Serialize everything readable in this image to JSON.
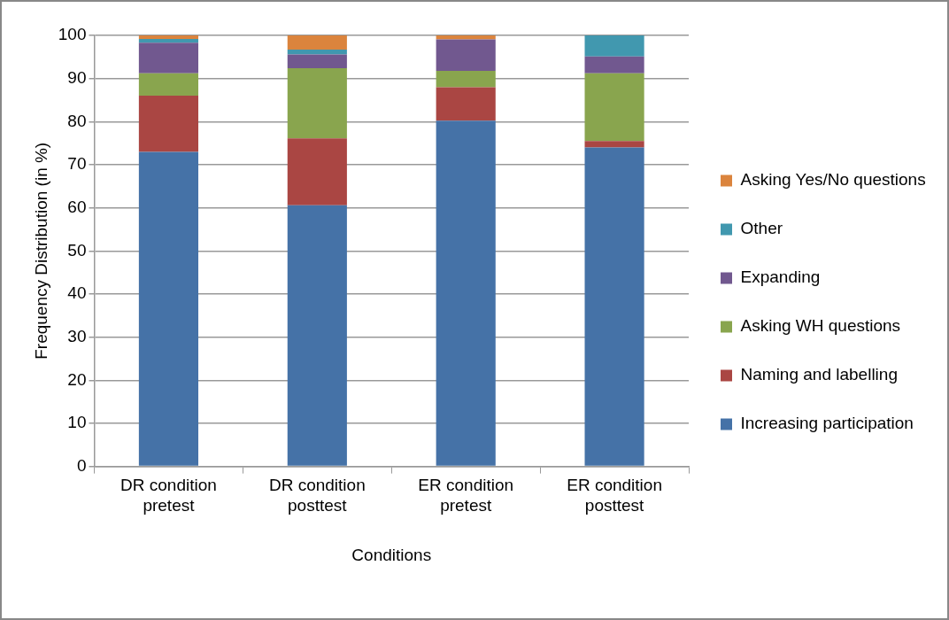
{
  "chart_data": {
    "type": "bar",
    "stacked": true,
    "xlabel": "Conditions",
    "ylabel": "Frequency Distribution (in %)",
    "categories": [
      "DR condition pretest",
      "DR condition posttest",
      "ER condition pretest",
      "ER condition posttest"
    ],
    "series": [
      {
        "name": "Increasing participation",
        "color": "#4572a7",
        "values": [
          73,
          60.6,
          80.2,
          74
        ]
      },
      {
        "name": "Naming and labelling",
        "color": "#aa4643",
        "values": [
          13,
          15.5,
          7.8,
          1.5
        ]
      },
      {
        "name": "Asking WH questions",
        "color": "#89a54e",
        "values": [
          5.2,
          16.3,
          3.8,
          15.7
        ]
      },
      {
        "name": "Expanding",
        "color": "#71588f",
        "values": [
          7.1,
          3.2,
          7.3,
          3.9
        ]
      },
      {
        "name": "Other",
        "color": "#4198af",
        "values": [
          0.9,
          1.1,
          0,
          4.9
        ]
      },
      {
        "name": "Asking Yes/No questions",
        "color": "#db843d",
        "values": [
          0.8,
          3.3,
          0.9,
          0
        ]
      }
    ],
    "ylim": [
      0,
      100
    ],
    "yticks": [
      0,
      10,
      20,
      30,
      40,
      50,
      60,
      70,
      80,
      90,
      100
    ],
    "grid": "y",
    "legend": "right"
  }
}
